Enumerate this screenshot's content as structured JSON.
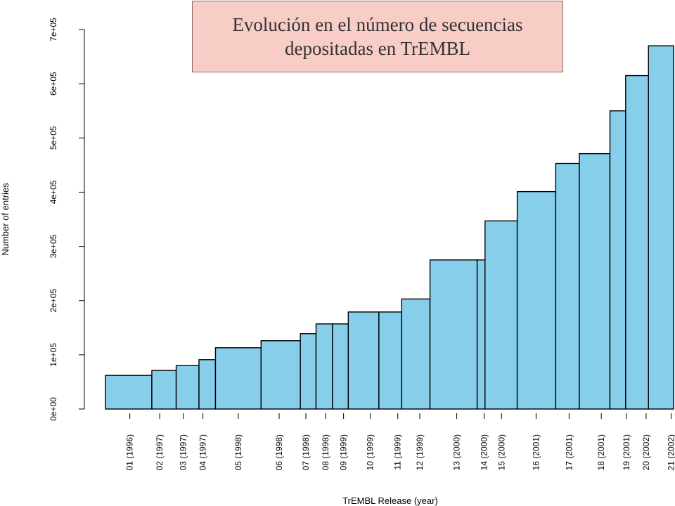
{
  "title_lines": [
    "Evolución en el número de secuencias",
    "depositadas en TrEMBL"
  ],
  "chart_data": {
    "type": "bar",
    "title": "Evolución en el número de secuencias depositadas en TrEMBL",
    "xlabel": "TrEMBL Release (year)",
    "ylabel": "Number of entries",
    "ylim": [
      0,
      700000
    ],
    "yticks": [
      0,
      100000,
      200000,
      300000,
      400000,
      500000,
      600000,
      700000
    ],
    "ytick_labels": [
      "0e+00",
      "1e+05",
      "2e+05",
      "3e+05",
      "4e+05",
      "5e+05",
      "6e+05",
      "7e+05"
    ],
    "x_unit": "release date (year)",
    "xlim": [
      1996.47,
      2002.4
    ],
    "bar_color": "#87ceeb",
    "grid": false,
    "legend": "none",
    "categories": [
      "01 (1996)",
      "02 (1997)",
      "03 (1997)",
      "04 (1997)",
      "05 (1998)",
      "06 (1998)",
      "07 (1998)",
      "08 (1998)",
      "09 (1999)",
      "10 (1999)",
      "11 (1999)",
      "12 (1999)",
      "13 (2000)",
      "14 (2000)",
      "15 (2000)",
      "16 (2001)",
      "17 (2001)",
      "18 (2001)",
      "19 (2001)",
      "20 (2002)",
      "21 (2002)"
    ],
    "release_x": [
      1996.78,
      1997.16,
      1997.46,
      1997.71,
      1998.16,
      1998.68,
      1999.02,
      1999.27,
      1999.5,
      1999.84,
      2000.19,
      2000.47,
      2000.94,
      2001.29,
      2001.51,
      2001.95,
      2002.37,
      2002.78,
      2003.1,
      2003.35,
      2003.67
    ],
    "bar_left": [
      1996.47,
      1997.06,
      1997.37,
      1997.66,
      1997.87,
      1998.45,
      1998.95,
      1999.15,
      1999.36,
      1999.56,
      1999.95,
      2000.24,
      2000.6,
      2001.2,
      2001.3,
      2001.71,
      2002.2,
      2002.5,
      2002.89,
      2003.09,
      2003.38
    ],
    "bar_right": [
      1997.06,
      1997.37,
      1997.66,
      1997.87,
      1998.45,
      1998.95,
      1999.15,
      1999.36,
      1999.56,
      1999.95,
      2000.24,
      2000.6,
      2001.2,
      2001.3,
      2001.71,
      2002.2,
      2002.5,
      2002.89,
      2003.09,
      2003.38,
      2003.7
    ],
    "values": [
      62000,
      71000,
      80000,
      91000,
      113000,
      126000,
      139000,
      157000,
      157000,
      179000,
      179000,
      203000,
      275000,
      275000,
      347000,
      401000,
      453000,
      471000,
      550000,
      615000,
      670000
    ]
  }
}
